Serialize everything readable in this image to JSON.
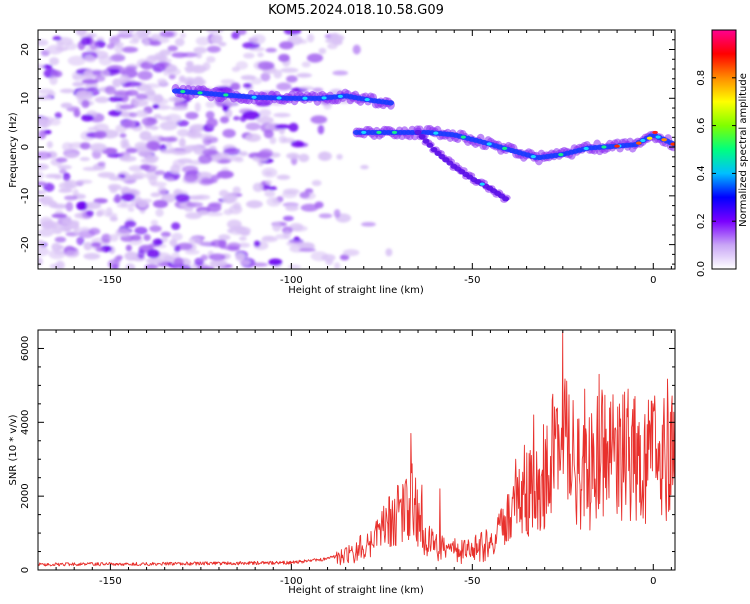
{
  "title": "KOM5.2024.018.10.58.G09",
  "colors": {
    "snr_line": "#e8302c",
    "blob_faint": "#d9c2f5",
    "blob_mid": "#a565f0",
    "blob_strong": "#6a00f0",
    "colormap": [
      "#ffffff",
      "#c9a6f6",
      "#7a00ff",
      "#0000ff",
      "#00bfff",
      "#00ff7f",
      "#80ff00",
      "#ffff00",
      "#ff8c00",
      "#ff0000",
      "#ff0090"
    ]
  },
  "chart_data": [
    {
      "id": "spectrogram",
      "type": "heatmap",
      "xlabel": "Height of straight line (km)",
      "ylabel": "Frequency (Hz)",
      "xlim": [
        -170,
        6
      ],
      "ylim": [
        -25,
        24
      ],
      "xticks": [
        "-150",
        "-100",
        "-50",
        "0"
      ],
      "yticks": [
        "20",
        "10",
        "0",
        "-10",
        "-20"
      ],
      "colorbar": {
        "label": "Normalized spectral amplitude",
        "range": [
          0,
          1
        ],
        "ticks": [
          "0.0",
          "0.2",
          "0.4",
          "0.6",
          "0.8"
        ]
      },
      "ridges": [
        {
          "x": [
            -132,
            -120,
            -110,
            -100,
            -92,
            -85,
            -78,
            -72
          ],
          "y": [
            11.5,
            10.8,
            10.2,
            10.0,
            10.0,
            10.5,
            9.6,
            9.0
          ]
        },
        {
          "x": [
            -82,
            -72,
            -62,
            -55,
            -48,
            -40,
            -32,
            -25,
            -18,
            -10,
            -5,
            0,
            3,
            6
          ],
          "y": [
            3,
            3,
            3,
            2.5,
            1.2,
            -0.5,
            -2.2,
            -1.5,
            -0.2,
            0.2,
            0.5,
            2.5,
            1.5,
            0.5
          ]
        },
        {
          "x": [
            -65,
            -60,
            -55,
            -50,
            -45,
            -40
          ],
          "y": [
            3,
            -1,
            -4,
            -6.5,
            -8.5,
            -11
          ]
        }
      ]
    },
    {
      "id": "snr",
      "type": "line",
      "xlabel": "Height of straight line (km)",
      "ylabel": "SNR (10 * v/v)",
      "xlim": [
        -170,
        6
      ],
      "ylim": [
        0,
        6500
      ],
      "xticks": [
        "-150",
        "-100",
        "-50",
        "0"
      ],
      "yticks": [
        "0",
        "2000",
        "4000",
        "6000"
      ],
      "envelope": {
        "x": [
          -170,
          -150,
          -120,
          -100,
          -90,
          -85,
          -80,
          -75,
          -70,
          -67,
          -65,
          -62,
          -60,
          -55,
          -50,
          -45,
          -40,
          -37,
          -35,
          -32,
          -30,
          -27,
          -25,
          -22,
          -20,
          -17,
          -15,
          -12,
          -10,
          -8,
          -5,
          -3,
          0,
          3,
          6
        ],
        "y": [
          150,
          160,
          180,
          200,
          300,
          450,
          700,
          1200,
          1800,
          2400,
          1600,
          900,
          700,
          600,
          650,
          800,
          1500,
          2200,
          2500,
          2600,
          2900,
          3600,
          4000,
          3300,
          2800,
          3100,
          3900,
          3400,
          3500,
          3600,
          3700,
          3300,
          3300,
          3600,
          3900
        ]
      },
      "peaks": {
        "x": [
          -67,
          -64,
          -59,
          -38,
          -33,
          -28,
          -25,
          -19,
          -15,
          -7,
          -5,
          0,
          5
        ],
        "y": [
          3700,
          2300,
          2200,
          3000,
          4200,
          4600,
          6450,
          4900,
          5300,
          4900,
          4700,
          4300,
          4400
        ]
      }
    }
  ]
}
